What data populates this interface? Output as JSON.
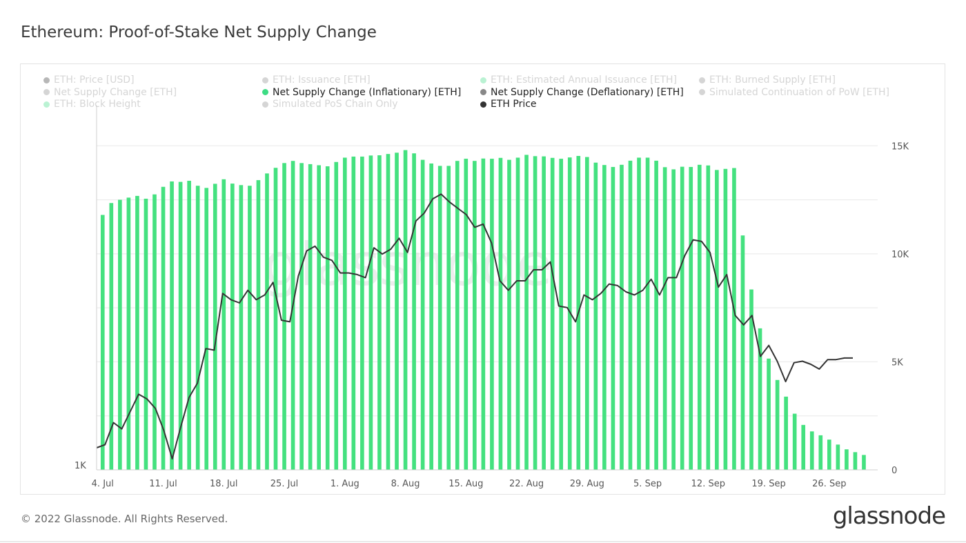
{
  "page": {
    "title": "Ethereum: Proof-of-Stake Net Supply Change",
    "copyright": "© 2022 Glassnode. All Rights Reserved.",
    "logo_text": "glassnode",
    "watermark": "glassnode"
  },
  "legend": [
    {
      "label": "ETH: Price [USD]",
      "color": "#333333",
      "active": false
    },
    {
      "label": "ETH: Issuance [ETH]",
      "color": "#888888",
      "active": false
    },
    {
      "label": "ETH: Estimated Annual Issuance [ETH]",
      "color": "#3ddc84",
      "active": false
    },
    {
      "label": "ETH: Burned Supply [ETH]",
      "color": "#888888",
      "active": false
    },
    {
      "label": "Net Supply Change [ETH]",
      "color": "#888888",
      "active": false
    },
    {
      "label": "Net Supply Change (Inflationary) [ETH]",
      "color": "#3ddc84",
      "active": true
    },
    {
      "label": "Net Supply Change (Deflationary) [ETH]",
      "color": "#888888",
      "active": true
    },
    {
      "label": "Simulated Continuation of PoW [ETH]",
      "color": "#888888",
      "active": false
    },
    {
      "label": "ETH: Block Height",
      "color": "#3ddc84",
      "active": false
    },
    {
      "label": "Simulated PoS Chain Only",
      "color": "#888888",
      "active": false
    },
    {
      "label": "ETH Price",
      "color": "#333333",
      "active": true
    }
  ],
  "chart_data": {
    "type": "bar",
    "colors": {
      "bars": "#44e17f",
      "line": "#333333",
      "grid": "#e8e8e8",
      "axis_text": "#555555"
    },
    "x_tick_labels": [
      "4. Jul",
      "11. Jul",
      "18. Jul",
      "25. Jul",
      "1. Aug",
      "8. Aug",
      "15. Aug",
      "22. Aug",
      "29. Aug",
      "5. Sep",
      "12. Sep",
      "19. Sep",
      "26. Sep"
    ],
    "y_right": {
      "ticks": [
        "0",
        "5K",
        "10K",
        "15K"
      ],
      "range": [
        0,
        17500
      ]
    },
    "y_left": {
      "ticks": [
        "1K"
      ],
      "range": [
        1000,
        2200
      ]
    },
    "series": [
      {
        "name": "Net Supply Change (Inflationary) [ETH]",
        "axis": "right",
        "values": [
          11800,
          12350,
          12500,
          12600,
          12680,
          12550,
          12750,
          13100,
          13350,
          13330,
          13380,
          13150,
          13050,
          13240,
          13450,
          13250,
          13180,
          13150,
          13410,
          13720,
          13980,
          14200,
          14300,
          14200,
          14150,
          14100,
          14050,
          14250,
          14450,
          14500,
          14500,
          14550,
          14560,
          14620,
          14680,
          14800,
          14650,
          14350,
          14180,
          14070,
          14070,
          14300,
          14400,
          14300,
          14410,
          14400,
          14440,
          14350,
          14450,
          14580,
          14520,
          14510,
          14440,
          14400,
          14460,
          14530,
          14480,
          14220,
          14110,
          14020,
          14120,
          14310,
          14450,
          14450,
          14310,
          14010,
          13910,
          14030,
          14020,
          14120,
          14090,
          13880,
          13930,
          13970,
          10850,
          8350,
          6550,
          5150,
          4160,
          3390,
          2600,
          2080,
          1780,
          1600,
          1400,
          1170,
          950,
          820,
          690
        ]
      },
      {
        "name": "ETH Price",
        "axis": "left",
        "values": [
          1070,
          1080,
          1150,
          1130,
          1185,
          1240,
          1225,
          1195,
          1125,
          1035,
          1135,
          1230,
          1275,
          1385,
          1380,
          1560,
          1540,
          1530,
          1570,
          1540,
          1555,
          1595,
          1475,
          1470,
          1615,
          1695,
          1710,
          1675,
          1665,
          1625,
          1625,
          1620,
          1610,
          1705,
          1685,
          1700,
          1735,
          1690,
          1790,
          1815,
          1860,
          1875,
          1850,
          1830,
          1810,
          1770,
          1780,
          1720,
          1600,
          1570,
          1600,
          1600,
          1635,
          1635,
          1660,
          1520,
          1515,
          1470,
          1555,
          1540,
          1560,
          1590,
          1585,
          1565,
          1555,
          1570,
          1605,
          1555,
          1610,
          1610,
          1680,
          1730,
          1725,
          1690,
          1580,
          1620,
          1490,
          1460,
          1490,
          1360,
          1395,
          1345,
          1280,
          1340,
          1345,
          1335,
          1320,
          1350,
          1350,
          1355,
          1355
        ]
      }
    ]
  }
}
